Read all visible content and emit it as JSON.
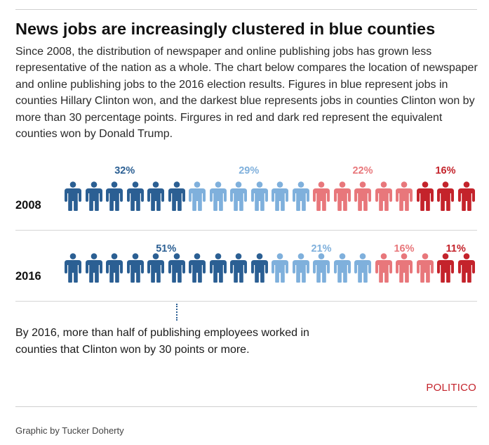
{
  "header": {
    "title": "News jobs are increasingly clustered in blue counties",
    "description": "Since 2008, the distribution of newspaper and online publishing jobs has grown less representative of the nation as a whole. The chart below compares the location of newspaper and online publishing jobs to the 2016 election results. Figures in blue represent jobs in counties Hillary Clinton won, and the darkest blue represents jobs in counties Clinton won by more than 30 percentage points. Firgures in red and dark red represent the equivalent counties won by Donald Trump."
  },
  "chart_data": {
    "type": "pictogram",
    "categories": [
      "Clinton won by more than 30 points",
      "Clinton won",
      "Trump won",
      "Trump won by more than 30 points"
    ],
    "colors": [
      "#2b5f93",
      "#7fb0dc",
      "#e8777b",
      "#c4232b"
    ],
    "rows": [
      {
        "year": "2008",
        "icon_counts": [
          6,
          6,
          5,
          3
        ],
        "values": [
          32,
          29,
          22,
          16
        ],
        "labels": [
          "32%",
          "29%",
          "22%",
          "16%"
        ]
      },
      {
        "year": "2016",
        "icon_counts": [
          10,
          5,
          3,
          2
        ],
        "values": [
          51,
          21,
          16,
          11
        ],
        "labels": [
          "51%",
          "21%",
          "16%",
          "11%"
        ]
      }
    ]
  },
  "annotation": "By 2016, more than half of publishing employees worked in counties that Clinton won by 30 points or more.",
  "logo": "POLITICO",
  "credit": "Graphic by Tucker Doherty"
}
